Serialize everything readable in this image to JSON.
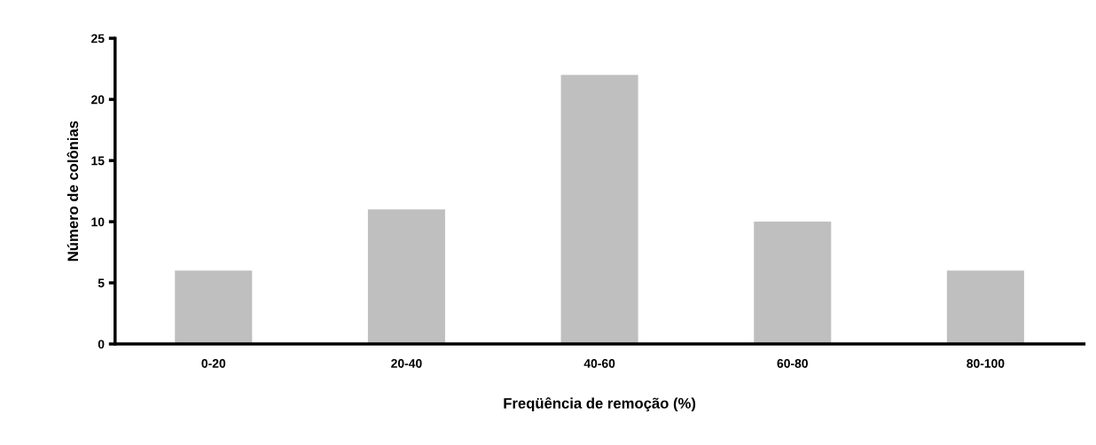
{
  "chart_data": {
    "type": "bar",
    "xlabel": "Freqüência de remoção (%)",
    "ylabel": "Número de colônias",
    "categories": [
      "0-20",
      "20-40",
      "40-60",
      "60-80",
      "80-100"
    ],
    "values": [
      6,
      11,
      22,
      10,
      6
    ],
    "color": "#bfbfbf",
    "ylim": [
      0,
      25
    ],
    "yticks": [
      0,
      5,
      10,
      15,
      20,
      25
    ],
    "grid": false,
    "legend": false
  }
}
